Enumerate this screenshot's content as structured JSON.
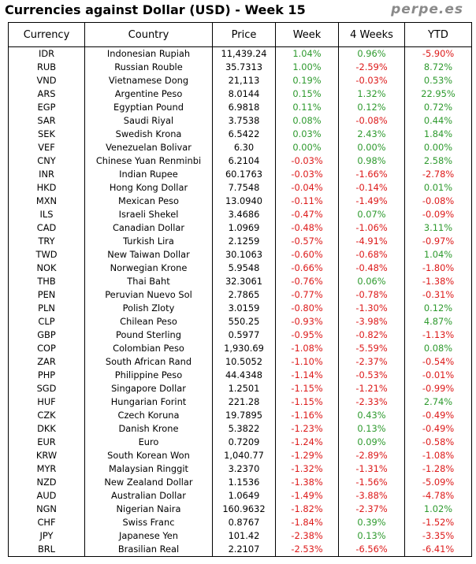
{
  "title": "Currencies against Dollar (USD) - Week 15",
  "brand": "perpe.es",
  "colors": {
    "positive": "#2e9a2e",
    "negative": "#dd1a1a"
  },
  "chart_data": {
    "type": "table",
    "columns": [
      "Currency",
      "Country",
      "Price",
      "Week",
      "4 Weeks",
      "YTD"
    ],
    "rows": [
      [
        "IDR",
        "Indonesian Rupiah",
        "11,439.24",
        "1.04%",
        "0.96%",
        "-5.90%"
      ],
      [
        "RUB",
        "Russian Rouble",
        "35.7313",
        "1.00%",
        "-2.59%",
        "8.72%"
      ],
      [
        "VND",
        "Vietnamese Dong",
        "21,113",
        "0.19%",
        "-0.03%",
        "0.53%"
      ],
      [
        "ARS",
        "Argentine Peso",
        "8.0144",
        "0.15%",
        "1.32%",
        "22.95%"
      ],
      [
        "EGP",
        "Egyptian Pound",
        "6.9818",
        "0.11%",
        "0.12%",
        "0.72%"
      ],
      [
        "SAR",
        "Saudi Riyal",
        "3.7538",
        "0.08%",
        "-0.08%",
        "0.44%"
      ],
      [
        "SEK",
        "Swedish Krona",
        "6.5422",
        "0.03%",
        "2.43%",
        "1.84%"
      ],
      [
        "VEF",
        "Venezuelan Bolivar",
        "6.30",
        "0.00%",
        "0.00%",
        "0.00%"
      ],
      [
        "CNY",
        "Chinese Yuan Renminbi",
        "6.2104",
        "-0.03%",
        "0.98%",
        "2.58%"
      ],
      [
        "INR",
        "Indian Rupee",
        "60.1763",
        "-0.03%",
        "-1.66%",
        "-2.78%"
      ],
      [
        "HKD",
        "Hong Kong Dollar",
        "7.7548",
        "-0.04%",
        "-0.14%",
        "0.01%"
      ],
      [
        "MXN",
        "Mexican Peso",
        "13.0940",
        "-0.11%",
        "-1.49%",
        "-0.08%"
      ],
      [
        "ILS",
        "Israeli Shekel",
        "3.4686",
        "-0.47%",
        "0.07%",
        "-0.09%"
      ],
      [
        "CAD",
        "Canadian Dollar",
        "1.0969",
        "-0.48%",
        "-1.06%",
        "3.11%"
      ],
      [
        "TRY",
        "Turkish Lira",
        "2.1259",
        "-0.57%",
        "-4.91%",
        "-0.97%"
      ],
      [
        "TWD",
        "New Taiwan Dollar",
        "30.1063",
        "-0.60%",
        "-0.68%",
        "1.04%"
      ],
      [
        "NOK",
        "Norwegian Krone",
        "5.9548",
        "-0.66%",
        "-0.48%",
        "-1.80%"
      ],
      [
        "THB",
        "Thai Baht",
        "32.3061",
        "-0.76%",
        "0.06%",
        "-1.38%"
      ],
      [
        "PEN",
        "Peruvian Nuevo Sol",
        "2.7865",
        "-0.77%",
        "-0.78%",
        "-0.31%"
      ],
      [
        "PLN",
        "Polish Zloty",
        "3.0159",
        "-0.80%",
        "-1.30%",
        "0.12%"
      ],
      [
        "CLP",
        "Chilean Peso",
        "550.25",
        "-0.93%",
        "-3.98%",
        "4.87%"
      ],
      [
        "GBP",
        "Pound Sterling",
        "0.5977",
        "-0.95%",
        "-0.82%",
        "-1.13%"
      ],
      [
        "COP",
        "Colombian Peso",
        "1,930.69",
        "-1.08%",
        "-5.59%",
        "0.08%"
      ],
      [
        "ZAR",
        "South African Rand",
        "10.5052",
        "-1.10%",
        "-2.37%",
        "-0.54%"
      ],
      [
        "PHP",
        "Philippine Peso",
        "44.4348",
        "-1.14%",
        "-0.53%",
        "-0.01%"
      ],
      [
        "SGD",
        "Singapore Dollar",
        "1.2501",
        "-1.15%",
        "-1.21%",
        "-0.99%"
      ],
      [
        "HUF",
        "Hungarian Forint",
        "221.28",
        "-1.15%",
        "-2.33%",
        "2.74%"
      ],
      [
        "CZK",
        "Czech Koruna",
        "19.7895",
        "-1.16%",
        "0.43%",
        "-0.49%"
      ],
      [
        "DKK",
        "Danish Krone",
        "5.3822",
        "-1.23%",
        "0.13%",
        "-0.49%"
      ],
      [
        "EUR",
        "Euro",
        "0.7209",
        "-1.24%",
        "0.09%",
        "-0.58%"
      ],
      [
        "KRW",
        "South Korean Won",
        "1,040.77",
        "-1.29%",
        "-2.89%",
        "-1.08%"
      ],
      [
        "MYR",
        "Malaysian Ringgit",
        "3.2370",
        "-1.32%",
        "-1.31%",
        "-1.28%"
      ],
      [
        "NZD",
        "New Zealand Dollar",
        "1.1536",
        "-1.38%",
        "-1.56%",
        "-5.09%"
      ],
      [
        "AUD",
        "Australian Dollar",
        "1.0649",
        "-1.49%",
        "-3.88%",
        "-4.78%"
      ],
      [
        "NGN",
        "Nigerian Naira",
        "160.9632",
        "-1.82%",
        "-2.37%",
        "1.02%"
      ],
      [
        "CHF",
        "Swiss Franc",
        "0.8767",
        "-1.84%",
        "0.39%",
        "-1.52%"
      ],
      [
        "JPY",
        "Japanese Yen",
        "101.42",
        "-2.38%",
        "0.13%",
        "-3.35%"
      ],
      [
        "BRL",
        "Brasilian Real",
        "2.2107",
        "-2.53%",
        "-6.56%",
        "-6.41%"
      ]
    ]
  }
}
